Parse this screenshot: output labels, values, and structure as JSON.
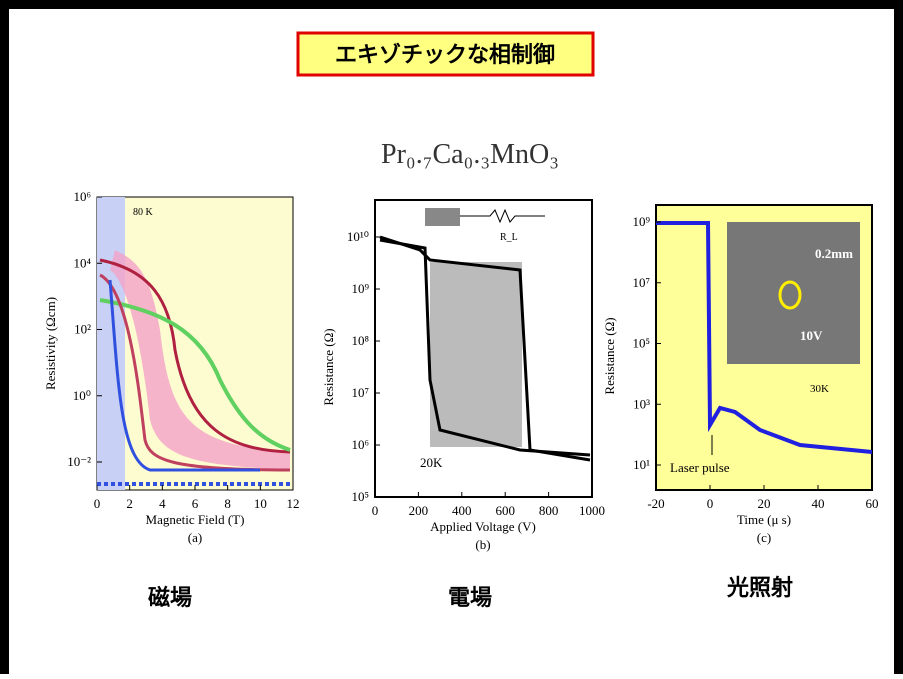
{
  "slide": {
    "title": "エキゾチックな相制御",
    "formula": "Pr₀.₇Ca₀.₃MnO₃",
    "panels": [
      {
        "ylabel": "Resistivity (Ωcm)",
        "xlabel": "Magnetic Field (T)",
        "caption": "(a)",
        "label": "磁場",
        "yticks": [
          "10⁶",
          "10⁴",
          "10²",
          "10⁰",
          "10⁻²"
        ],
        "xticks": [
          "0",
          "2",
          "4",
          "6",
          "8",
          "10",
          "12"
        ],
        "notes": [
          "80 K"
        ]
      },
      {
        "ylabel": "Resistance (Ω)",
        "xlabel": "Applied Voltage (V)",
        "caption": "(b)",
        "label": "電場",
        "yticks": [
          "10¹⁰",
          "10⁹",
          "10⁸",
          "10⁷",
          "10⁶",
          "10⁵"
        ],
        "xticks": [
          "0",
          "200",
          "400",
          "600",
          "800",
          "1000"
        ],
        "notes": [
          "20K",
          "R_L"
        ]
      },
      {
        "ylabel": "Resistance (Ω)",
        "xlabel": "Time (μ s)",
        "caption": "(c)",
        "label": "光照射",
        "yticks": [
          "10⁹",
          "10⁷",
          "10⁵",
          "10³",
          "10¹"
        ],
        "xticks": [
          "-20",
          "0",
          "20",
          "40",
          "60"
        ],
        "notes": [
          "Laser pulse",
          "30K",
          "0.2mm",
          "10V"
        ]
      }
    ]
  }
}
